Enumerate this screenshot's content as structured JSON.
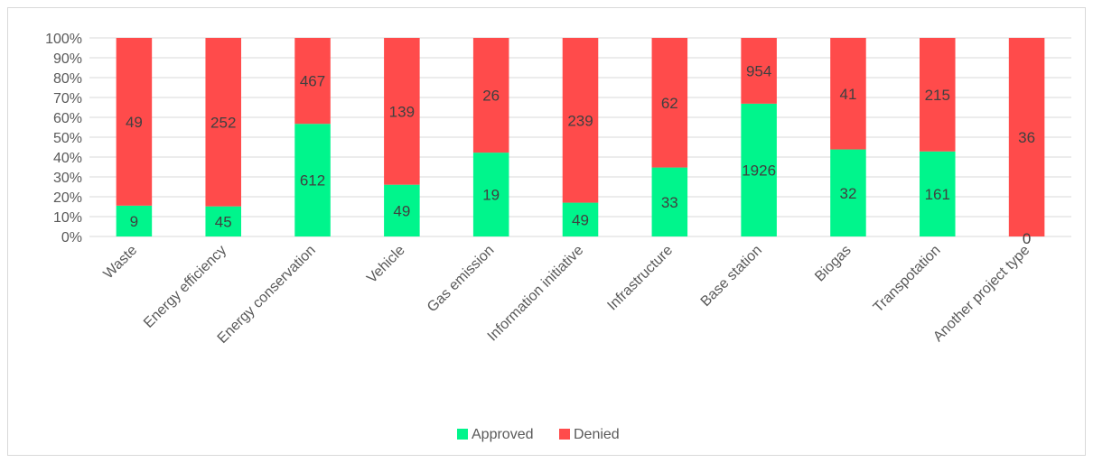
{
  "chart_data": {
    "type": "bar",
    "stacked": "percent",
    "categories": [
      "Waste",
      "Energy efficiency",
      "Energy conservation",
      "Vehicle",
      "Gas emission",
      "Information initiative",
      "Infrastructure",
      "Base station",
      "Biogas",
      "Transpotation",
      "Another project type"
    ],
    "series": [
      {
        "name": "Approved",
        "values": [
          9,
          45,
          612,
          49,
          19,
          49,
          33,
          1926,
          32,
          161,
          0
        ]
      },
      {
        "name": "Denied",
        "values": [
          49,
          252,
          467,
          139,
          26,
          239,
          62,
          954,
          41,
          215,
          36
        ]
      }
    ],
    "yticks": [
      "0%",
      "10%",
      "20%",
      "30%",
      "40%",
      "50%",
      "60%",
      "70%",
      "80%",
      "90%",
      "100%"
    ],
    "ylim": [
      0,
      100
    ],
    "grid": true,
    "legend_position": "bottom",
    "colors": {
      "Approved": "#00f58c",
      "Denied": "#ff4b4b"
    }
  }
}
